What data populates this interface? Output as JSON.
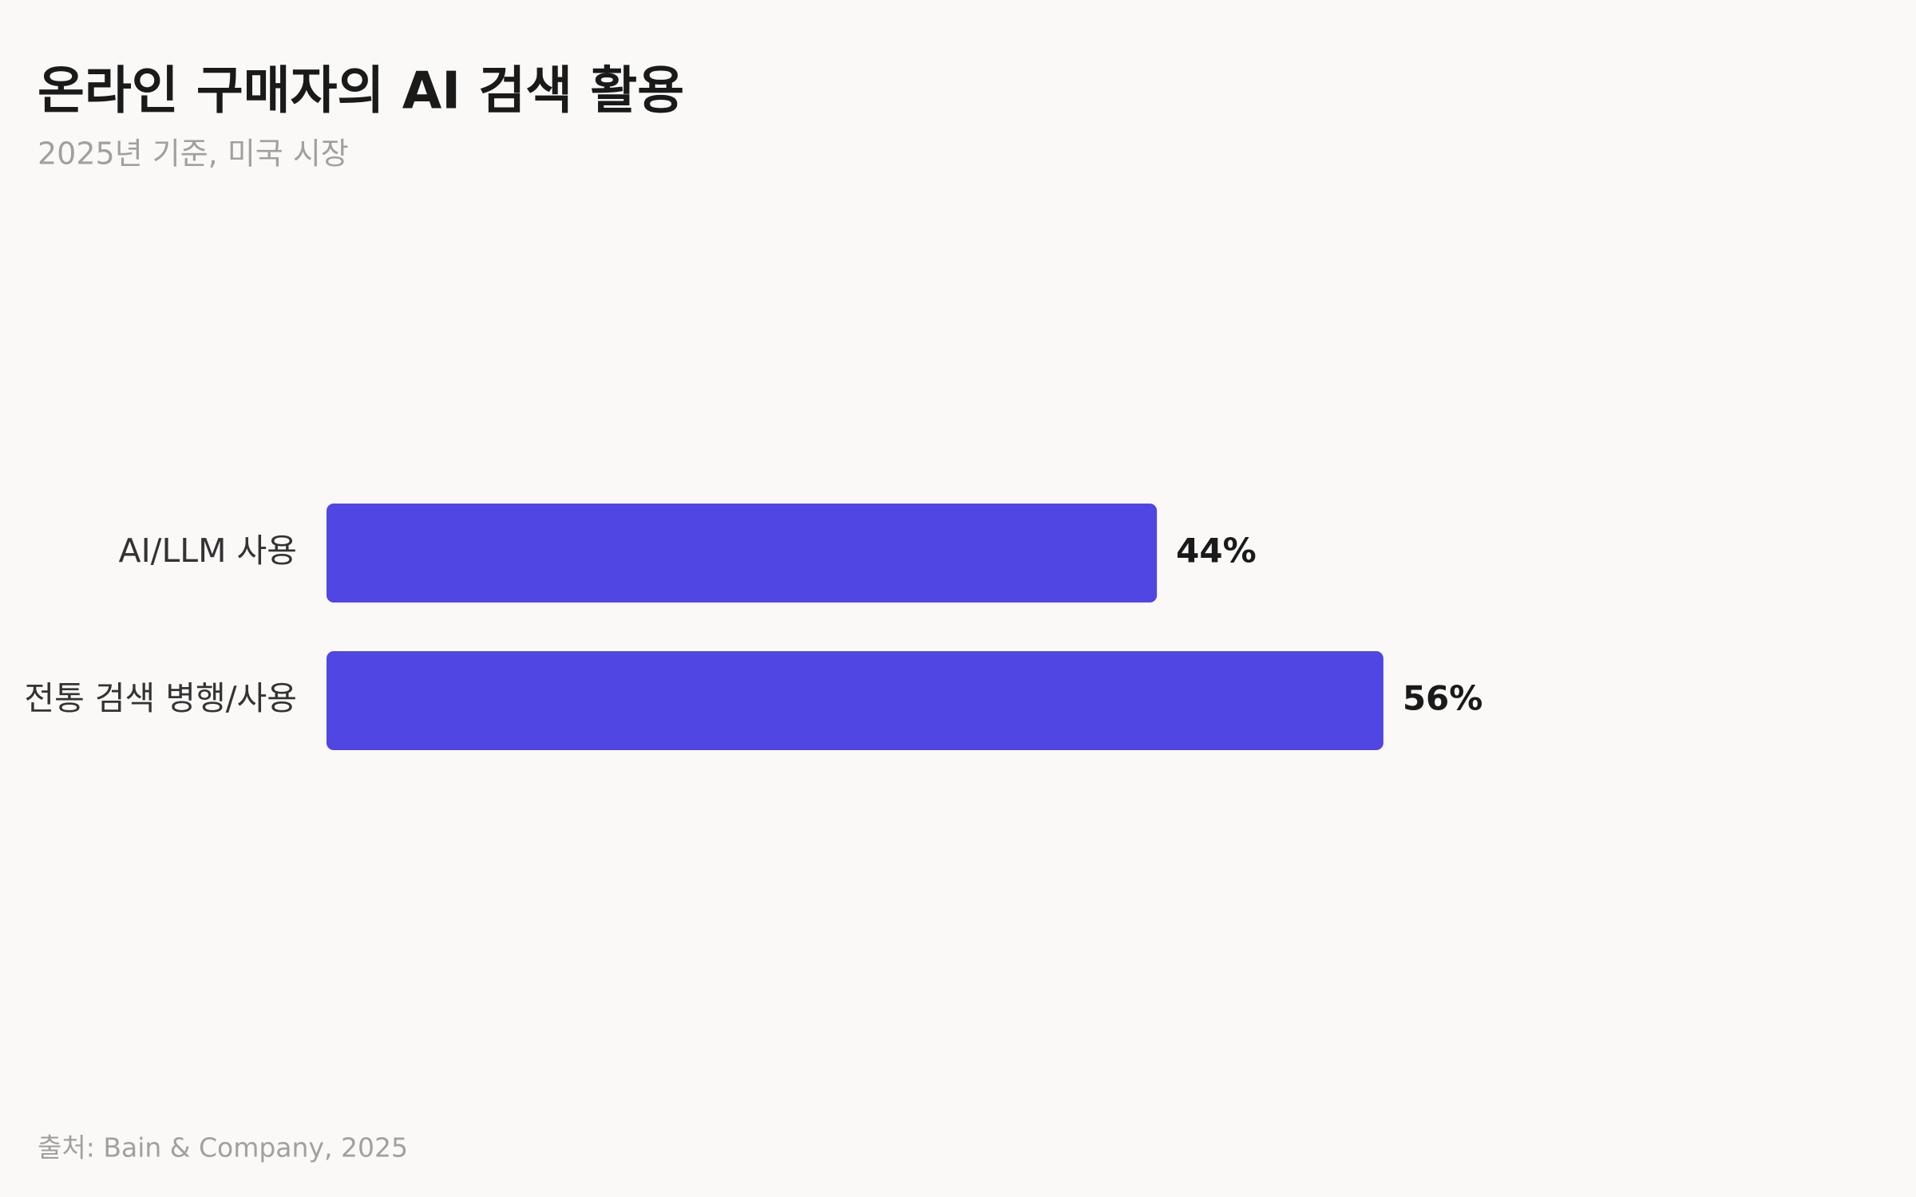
{
  "chart_data": {
    "type": "bar",
    "orientation": "horizontal",
    "title": "온라인 구매자의 AI 검색 활용",
    "subtitle": "2025년 기준, 미국 시장",
    "categories": [
      "AI/LLM 사용",
      "전통 검색 병행/사용"
    ],
    "values": [
      44,
      56
    ],
    "value_labels": [
      "44%",
      "56%"
    ],
    "color": "#5046e4",
    "source": "출처: Bain & Company, 2025"
  }
}
